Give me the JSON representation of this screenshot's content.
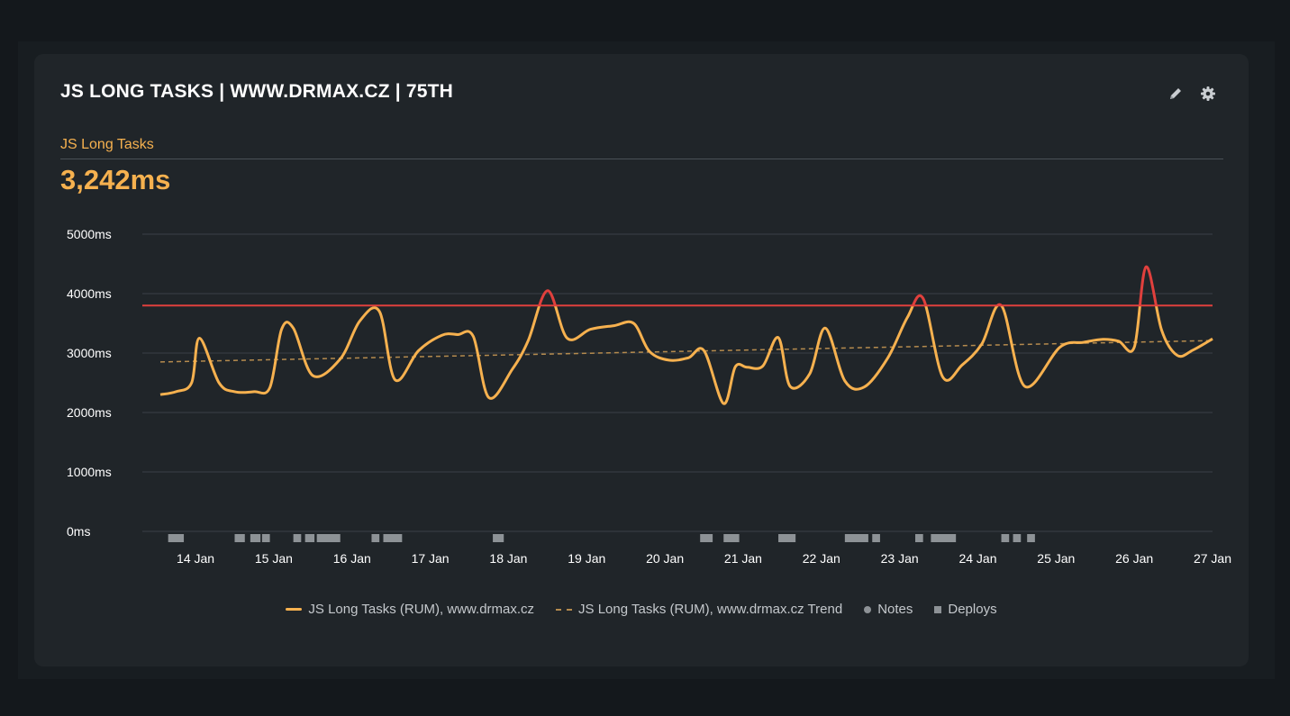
{
  "card": {
    "title": "JS LONG TASKS | WWW.DRMAX.CZ | 75TH",
    "metric_label": "JS Long Tasks",
    "metric_value": "3,242ms"
  },
  "icons": {
    "edit": "pencil-icon",
    "settings": "gear-icon"
  },
  "colors": {
    "series": "#f6b14f",
    "over_threshold": "#e0403d",
    "threshold": "#e0403d",
    "trend": "#b58b4e",
    "markers": "#8d9296"
  },
  "legend": {
    "series": "JS Long Tasks (RUM), www.drmax.cz",
    "trend": "JS Long Tasks (RUM), www.drmax.cz Trend",
    "notes": "Notes",
    "deploys": "Deploys"
  },
  "chart_data": {
    "type": "line",
    "title": "",
    "xlabel": "",
    "ylabel": "",
    "ylim": [
      0,
      5000
    ],
    "y_ticks": [
      "0ms",
      "1000ms",
      "2000ms",
      "3000ms",
      "4000ms",
      "5000ms"
    ],
    "y_tick_values": [
      0,
      1000,
      2000,
      3000,
      4000,
      5000
    ],
    "x_ticks": [
      "14 Jan",
      "15 Jan",
      "16 Jan",
      "17 Jan",
      "18 Jan",
      "19 Jan",
      "20 Jan",
      "21 Jan",
      "22 Jan",
      "23 Jan",
      "24 Jan",
      "25 Jan",
      "26 Jan",
      "27 Jan"
    ],
    "x_range": [
      -0.45,
      13.0
    ],
    "grid": true,
    "legend_position": "bottom-center",
    "threshold": 3800,
    "series": [
      {
        "name": "JS Long Tasks (RUM), www.drmax.cz",
        "x": [
          -0.45,
          -0.25,
          -0.05,
          0.05,
          0.3,
          0.5,
          0.75,
          0.95,
          1.1,
          1.25,
          1.5,
          1.85,
          2.1,
          2.35,
          2.55,
          2.85,
          3.15,
          3.35,
          3.55,
          3.75,
          4.05,
          4.25,
          4.5,
          4.75,
          5.05,
          5.35,
          5.6,
          5.8,
          6.05,
          6.3,
          6.5,
          6.75,
          6.9,
          7.05,
          7.25,
          7.45,
          7.6,
          7.85,
          8.05,
          8.3,
          8.55,
          8.85,
          9.1,
          9.3,
          9.55,
          9.8,
          10.05,
          10.3,
          10.6,
          11.05,
          11.35,
          11.6,
          11.8,
          12.0,
          12.15,
          12.35,
          12.55,
          12.75,
          13.0
        ],
        "y": [
          2300,
          2350,
          2500,
          3250,
          2500,
          2350,
          2350,
          2420,
          3400,
          3420,
          2620,
          2900,
          3540,
          3700,
          2550,
          3040,
          3300,
          3310,
          3280,
          2250,
          2730,
          3200,
          4050,
          3250,
          3400,
          3460,
          3500,
          3030,
          2880,
          2920,
          3040,
          2150,
          2770,
          2760,
          2780,
          3260,
          2440,
          2650,
          3420,
          2530,
          2430,
          2920,
          3600,
          3920,
          2600,
          2800,
          3150,
          3800,
          2440,
          3100,
          3180,
          3230,
          3200,
          3100,
          4450,
          3380,
          2960,
          3050,
          3240
        ]
      },
      {
        "name": "JS Long Tasks (RUM), www.drmax.cz Trend",
        "x": [
          -0.45,
          13.0
        ],
        "y": [
          2850,
          3210
        ]
      }
    ],
    "deploys": [
      {
        "x": -0.35,
        "w": 0.2
      },
      {
        "x": 0.5,
        "w": 0.13
      },
      {
        "x": 0.7,
        "w": 0.13
      },
      {
        "x": 0.85,
        "w": 0.1
      },
      {
        "x": 1.25,
        "w": 0.1
      },
      {
        "x": 1.4,
        "w": 0.12
      },
      {
        "x": 1.55,
        "w": 0.3
      },
      {
        "x": 2.25,
        "w": 0.1
      },
      {
        "x": 2.4,
        "w": 0.24
      },
      {
        "x": 3.8,
        "w": 0.14
      },
      {
        "x": 6.45,
        "w": 0.16
      },
      {
        "x": 6.75,
        "w": 0.2
      },
      {
        "x": 7.45,
        "w": 0.22
      },
      {
        "x": 8.3,
        "w": 0.3
      },
      {
        "x": 8.65,
        "w": 0.1
      },
      {
        "x": 9.2,
        "w": 0.1
      },
      {
        "x": 9.4,
        "w": 0.32
      },
      {
        "x": 10.3,
        "w": 0.1
      },
      {
        "x": 10.45,
        "w": 0.1
      },
      {
        "x": 10.63,
        "w": 0.1
      }
    ]
  }
}
